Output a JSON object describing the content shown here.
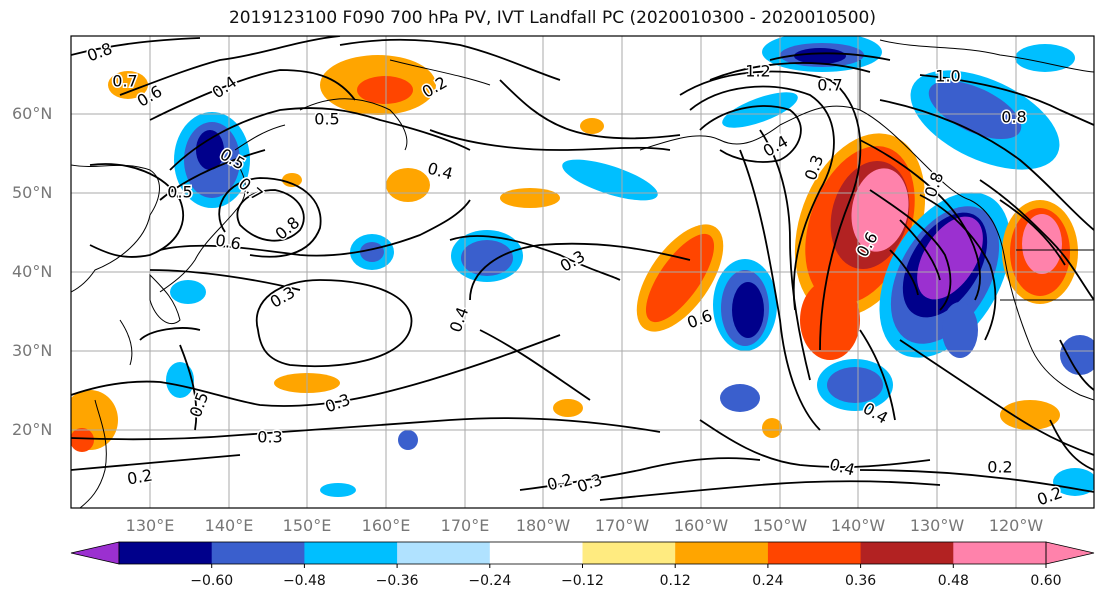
{
  "title": "2019123100 F090 700 hPa PV, IVT Landfall PC (2020010300 - 2020010500)",
  "lat_labels": [
    "20°N",
    "30°N",
    "40°N",
    "50°N",
    "60°N"
  ],
  "lon_labels": [
    "130°E",
    "140°E",
    "150°E",
    "160°E",
    "170°E",
    "180°W",
    "170°W",
    "160°W",
    "150°W",
    "140°W",
    "130°W",
    "120°W"
  ],
  "contour_labels": [
    "0.8",
    "0.7",
    "0.6",
    "0.4",
    "0.5",
    "0.2",
    "0.5",
    "0.5",
    "0.7",
    "0.8",
    "0.6",
    "0.3",
    "0.4",
    "0.4",
    "0.3",
    "0.6",
    "0.3",
    "0.5",
    "0.3",
    "0.2",
    "0.2",
    "0.3",
    "0.4",
    "0.2",
    "1.2",
    "0.7",
    "1.0",
    "0.8",
    "0.4",
    "0.3",
    "0.8",
    "0.6",
    "0.4",
    "0.2"
  ],
  "colorbar": {
    "ticks": [
      "−0.60",
      "−0.48",
      "−0.36",
      "−0.24",
      "−0.12",
      "0.12",
      "0.24",
      "0.36",
      "0.48",
      "0.60"
    ],
    "colors": [
      "#9b30d0",
      "#00008b",
      "#3a5fcd",
      "#00bfff",
      "#b0e2ff",
      "#ffffff",
      "#ffeb80",
      "#ffa500",
      "#ff4500",
      "#b22222",
      "#ff82ab",
      "#ff82ab"
    ]
  },
  "colors": {
    "purple": "#9b30d0",
    "navy": "#00008b",
    "blue": "#3a5fcd",
    "cyan": "#00bfff",
    "lightblue": "#b0e2ff",
    "yellow": "#ffeb80",
    "orange": "#ffa500",
    "red": "#ff4500",
    "darkred": "#b22222",
    "pink": "#ff82ab"
  }
}
